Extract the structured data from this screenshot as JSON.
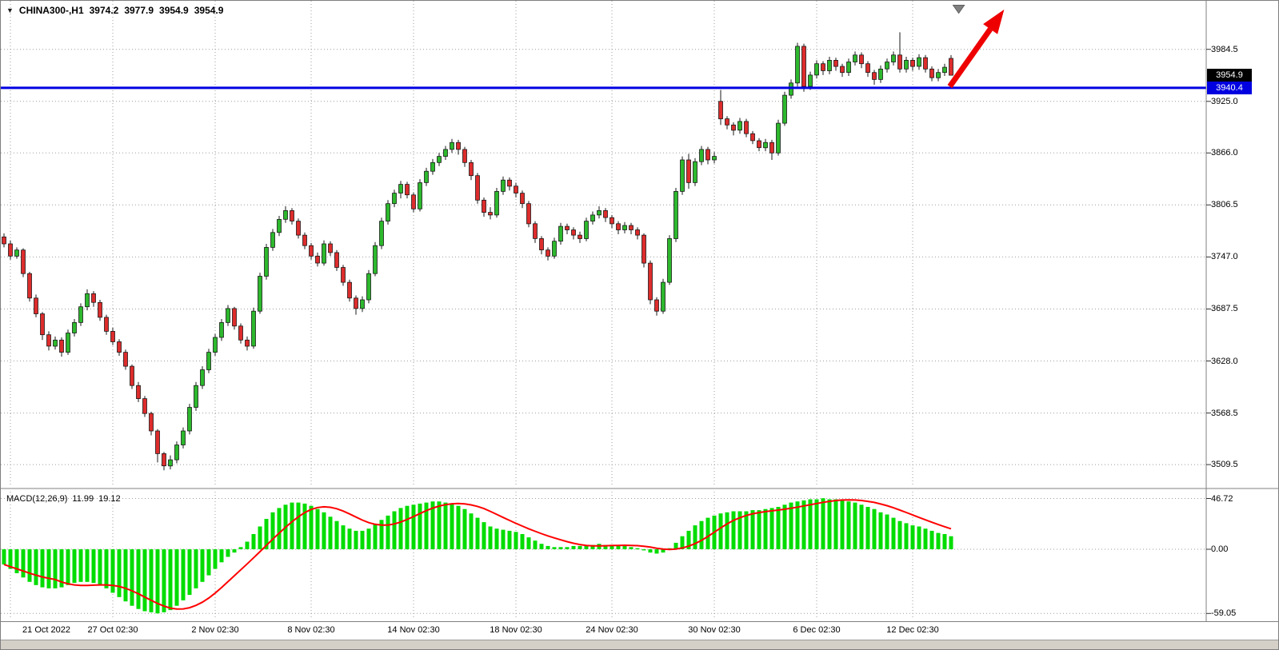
{
  "header": {
    "marker": "▼",
    "symbol_period": "CHINA300-,H1",
    "open": "3974.2",
    "high": "3977.9",
    "low": "3954.9",
    "close": "3954.9"
  },
  "price_axis": {
    "last_badge": "3954.9",
    "line_badge": "3940.4",
    "badge_last_bg": "#000000",
    "badge_line_bg": "#0000e1"
  },
  "grid_color": "#9e9e9e",
  "chart_data": [
    {
      "type": "candlestick",
      "symbol": "CHINA300-,H1",
      "timeframe": "H1",
      "ylim": [
        3484,
        4040
      ],
      "y_gridlines": [
        3984.5,
        3925.0,
        3866.0,
        3806.5,
        3747.0,
        3687.5,
        3628.0,
        3568.5,
        3509.5
      ],
      "x_ticks": [
        {
          "i": 1,
          "label": "21 Oct 2022"
        },
        {
          "i": 17,
          "label": "27 Oct 02:30"
        },
        {
          "i": 33,
          "label": "2 Nov 02:30"
        },
        {
          "i": 48,
          "label": "8 Nov 02:30"
        },
        {
          "i": 64,
          "label": "14 Nov 02:30"
        },
        {
          "i": 80,
          "label": "18 Nov 02:30"
        },
        {
          "i": 95,
          "label": "24 Nov 02:30"
        },
        {
          "i": 111,
          "label": "30 Nov 02:30"
        },
        {
          "i": 127,
          "label": "6 Dec 02:30"
        },
        {
          "i": 142,
          "label": "12 Dec 02:30"
        }
      ],
      "horizontal_line": {
        "price": 3940.4,
        "color": "#0000e1"
      },
      "last_price": 3954.9,
      "colors": {
        "bull": "#2db82d",
        "bear": "#dd2c2c",
        "wick": "#1a1a1a",
        "outline": "#111111"
      },
      "annotations": [
        {
          "type": "arrow",
          "color": "#ee0000",
          "from": {
            "index": 147.8,
            "price": 3942
          },
          "to": {
            "index": 156.3,
            "price": 4030
          }
        },
        {
          "type": "marker-down",
          "color": "#808080",
          "index": 149.2,
          "price": 4035
        }
      ],
      "ohlc": [
        [
          3770,
          3774,
          3758,
          3762
        ],
        [
          3762,
          3766,
          3744,
          3748
        ],
        [
          3748,
          3758,
          3745,
          3755
        ],
        [
          3755,
          3757,
          3724,
          3728
        ],
        [
          3728,
          3730,
          3696,
          3700
        ],
        [
          3700,
          3704,
          3678,
          3682
        ],
        [
          3682,
          3684,
          3652,
          3658
        ],
        [
          3658,
          3662,
          3640,
          3645
        ],
        [
          3645,
          3656,
          3641,
          3652
        ],
        [
          3652,
          3655,
          3633,
          3638
        ],
        [
          3638,
          3664,
          3635,
          3660
        ],
        [
          3660,
          3676,
          3656,
          3672
        ],
        [
          3672,
          3694,
          3668,
          3690
        ],
        [
          3690,
          3710,
          3686,
          3705
        ],
        [
          3705,
          3708,
          3690,
          3695
        ],
        [
          3695,
          3698,
          3674,
          3678
        ],
        [
          3678,
          3681,
          3658,
          3662
        ],
        [
          3662,
          3666,
          3646,
          3650
        ],
        [
          3650,
          3653,
          3634,
          3638
        ],
        [
          3638,
          3641,
          3618,
          3622
        ],
        [
          3622,
          3624,
          3596,
          3600
        ],
        [
          3600,
          3604,
          3581,
          3585
        ],
        [
          3585,
          3588,
          3564,
          3568
        ],
        [
          3568,
          3570,
          3543,
          3548
        ],
        [
          3548,
          3550,
          3512,
          3522
        ],
        [
          3522,
          3524,
          3503,
          3508
        ],
        [
          3508,
          3520,
          3504,
          3515
        ],
        [
          3515,
          3536,
          3511,
          3532
        ],
        [
          3532,
          3552,
          3528,
          3548
        ],
        [
          3548,
          3579,
          3544,
          3575
        ],
        [
          3575,
          3604,
          3571,
          3600
        ],
        [
          3600,
          3622,
          3596,
          3618
        ],
        [
          3618,
          3642,
          3614,
          3638
        ],
        [
          3638,
          3659,
          3634,
          3655
        ],
        [
          3655,
          3676,
          3651,
          3672
        ],
        [
          3672,
          3692,
          3668,
          3688
        ],
        [
          3688,
          3690,
          3664,
          3668
        ],
        [
          3668,
          3671,
          3648,
          3652
        ],
        [
          3652,
          3656,
          3640,
          3645
        ],
        [
          3645,
          3689,
          3642,
          3685
        ],
        [
          3685,
          3729,
          3682,
          3725
        ],
        [
          3725,
          3762,
          3721,
          3758
        ],
        [
          3758,
          3779,
          3754,
          3775
        ],
        [
          3775,
          3794,
          3771,
          3790
        ],
        [
          3790,
          3805,
          3786,
          3800
        ],
        [
          3800,
          3803,
          3784,
          3788
        ],
        [
          3788,
          3791,
          3768,
          3772
        ],
        [
          3772,
          3775,
          3756,
          3760
        ],
        [
          3760,
          3763,
          3744,
          3748
        ],
        [
          3748,
          3752,
          3736,
          3740
        ],
        [
          3740,
          3766,
          3737,
          3762
        ],
        [
          3762,
          3765,
          3748,
          3752
        ],
        [
          3752,
          3755,
          3731,
          3735
        ],
        [
          3735,
          3738,
          3714,
          3718
        ],
        [
          3718,
          3721,
          3696,
          3700
        ],
        [
          3700,
          3703,
          3681,
          3688
        ],
        [
          3688,
          3702,
          3684,
          3698
        ],
        [
          3698,
          3732,
          3694,
          3728
        ],
        [
          3728,
          3764,
          3725,
          3760
        ],
        [
          3760,
          3792,
          3756,
          3788
        ],
        [
          3788,
          3812,
          3784,
          3808
        ],
        [
          3808,
          3824,
          3804,
          3820
        ],
        [
          3820,
          3834,
          3814,
          3830
        ],
        [
          3830,
          3833,
          3814,
          3818
        ],
        [
          3818,
          3821,
          3798,
          3802
        ],
        [
          3802,
          3836,
          3799,
          3832
        ],
        [
          3832,
          3849,
          3828,
          3845
        ],
        [
          3845,
          3859,
          3841,
          3855
        ],
        [
          3855,
          3866,
          3851,
          3862
        ],
        [
          3862,
          3874,
          3858,
          3870
        ],
        [
          3870,
          3882,
          3866,
          3878
        ],
        [
          3878,
          3881,
          3864,
          3870
        ],
        [
          3870,
          3873,
          3850,
          3855
        ],
        [
          3855,
          3858,
          3835,
          3840
        ],
        [
          3840,
          3843,
          3808,
          3812
        ],
        [
          3812,
          3815,
          3793,
          3798
        ],
        [
          3798,
          3804,
          3790,
          3795
        ],
        [
          3795,
          3826,
          3792,
          3822
        ],
        [
          3822,
          3839,
          3818,
          3835
        ],
        [
          3835,
          3838,
          3823,
          3828
        ],
        [
          3828,
          3832,
          3815,
          3820
        ],
        [
          3820,
          3823,
          3803,
          3808
        ],
        [
          3808,
          3811,
          3781,
          3785
        ],
        [
          3785,
          3788,
          3763,
          3768
        ],
        [
          3768,
          3771,
          3750,
          3755
        ],
        [
          3755,
          3758,
          3743,
          3748
        ],
        [
          3748,
          3769,
          3745,
          3765
        ],
        [
          3765,
          3786,
          3761,
          3782
        ],
        [
          3782,
          3785,
          3773,
          3778
        ],
        [
          3778,
          3781,
          3767,
          3772
        ],
        [
          3772,
          3776,
          3763,
          3768
        ],
        [
          3768,
          3792,
          3765,
          3788
        ],
        [
          3788,
          3799,
          3784,
          3795
        ],
        [
          3795,
          3805,
          3791,
          3800
        ],
        [
          3800,
          3803,
          3787,
          3792
        ],
        [
          3792,
          3795,
          3780,
          3785
        ],
        [
          3785,
          3788,
          3773,
          3778
        ],
        [
          3778,
          3787,
          3774,
          3783
        ],
        [
          3783,
          3786,
          3773,
          3778
        ],
        [
          3778,
          3781,
          3767,
          3772
        ],
        [
          3772,
          3774,
          3735,
          3740
        ],
        [
          3740,
          3743,
          3693,
          3698
        ],
        [
          3698,
          3701,
          3680,
          3685
        ],
        [
          3685,
          3722,
          3682,
          3718
        ],
        [
          3718,
          3772,
          3715,
          3768
        ],
        [
          3768,
          3826,
          3764,
          3822
        ],
        [
          3822,
          3862,
          3818,
          3858
        ],
        [
          3858,
          3865,
          3825,
          3832
        ],
        [
          3832,
          3860,
          3828,
          3856
        ],
        [
          3856,
          3874,
          3852,
          3870
        ],
        [
          3870,
          3873,
          3853,
          3858
        ],
        [
          3858,
          3867,
          3854,
          3862
        ],
        [
          3925,
          3938,
          3898,
          3905
        ],
        [
          3905,
          3908,
          3893,
          3898
        ],
        [
          3898,
          3901,
          3886,
          3892
        ],
        [
          3892,
          3906,
          3888,
          3902
        ],
        [
          3902,
          3905,
          3884,
          3888
        ],
        [
          3888,
          3891,
          3876,
          3880
        ],
        [
          3880,
          3883,
          3868,
          3872
        ],
        [
          3872,
          3882,
          3868,
          3878
        ],
        [
          3878,
          3881,
          3858,
          3866
        ],
        [
          3866,
          3904,
          3863,
          3900
        ],
        [
          3900,
          3936,
          3897,
          3932
        ],
        [
          3932,
          3950,
          3928,
          3946
        ],
        [
          3946,
          3992,
          3942,
          3988
        ],
        [
          3988,
          3991,
          3936,
          3942
        ],
        [
          3942,
          3959,
          3938,
          3955
        ],
        [
          3955,
          3972,
          3951,
          3968
        ],
        [
          3968,
          3971,
          3955,
          3960
        ],
        [
          3960,
          3976,
          3956,
          3972
        ],
        [
          3972,
          3975,
          3960,
          3965
        ],
        [
          3965,
          3968,
          3953,
          3958
        ],
        [
          3958,
          3974,
          3954,
          3970
        ],
        [
          3970,
          3982,
          3966,
          3978
        ],
        [
          3978,
          3981,
          3963,
          3968
        ],
        [
          3968,
          3971,
          3953,
          3958
        ],
        [
          3958,
          3961,
          3944,
          3950
        ],
        [
          3950,
          3966,
          3946,
          3962
        ],
        [
          3962,
          3974,
          3958,
          3970
        ],
        [
          3970,
          3982,
          3966,
          3978
        ],
        [
          3978,
          4004,
          3958,
          3962
        ],
        [
          3962,
          3976,
          3958,
          3972
        ],
        [
          3972,
          3975,
          3960,
          3965
        ],
        [
          3965,
          3979,
          3961,
          3975
        ],
        [
          3975,
          3978,
          3958,
          3962
        ],
        [
          3962,
          3965,
          3948,
          3952
        ],
        [
          3952,
          3962,
          3948,
          3958
        ],
        [
          3958,
          3968,
          3954,
          3964
        ],
        [
          3974.2,
          3977.9,
          3954.9,
          3954.9
        ]
      ]
    },
    {
      "type": "macd",
      "label": "MACD(12,26,9)",
      "macd_value": "11.99",
      "signal_value": "19.12",
      "signal_method": "sma9",
      "ylim": [
        -64,
        53
      ],
      "y_gridlines": [
        46.72,
        0,
        -59.05
      ],
      "colors": {
        "histogram": "#00dc00",
        "signal": "#ff0000"
      },
      "histogram": [
        -14,
        -18,
        -22,
        -26,
        -30,
        -33,
        -35,
        -36,
        -36,
        -35,
        -33,
        -31,
        -30,
        -30,
        -31,
        -33,
        -36,
        -40,
        -44,
        -48,
        -52,
        -55,
        -57,
        -58,
        -59,
        -58,
        -56,
        -52,
        -47,
        -42,
        -36,
        -30,
        -24,
        -18,
        -12,
        -7,
        -3,
        2,
        7,
        14,
        21,
        28,
        34,
        38,
        41,
        43,
        43,
        42,
        40,
        37,
        34,
        30,
        26,
        22,
        19,
        17,
        17,
        19,
        23,
        27,
        31,
        35,
        38,
        40,
        41,
        42,
        43,
        44,
        44,
        43,
        42,
        40,
        37,
        33,
        29,
        25,
        21,
        19,
        18,
        17,
        16,
        14,
        11,
        8,
        5,
        3,
        2,
        2,
        2,
        3,
        3,
        4,
        4,
        5,
        4,
        4,
        3,
        3,
        2,
        1,
        -1,
        -3,
        -4,
        -3,
        1,
        6,
        12,
        17,
        22,
        26,
        29,
        31,
        33,
        34,
        35,
        35,
        35,
        36,
        36,
        37,
        38,
        39,
        41,
        43,
        44,
        45,
        46,
        46,
        47,
        46,
        46,
        45,
        44,
        43,
        41,
        39,
        37,
        34,
        32,
        29,
        26,
        24,
        22,
        21,
        19,
        17,
        15,
        14,
        12
      ]
    }
  ]
}
